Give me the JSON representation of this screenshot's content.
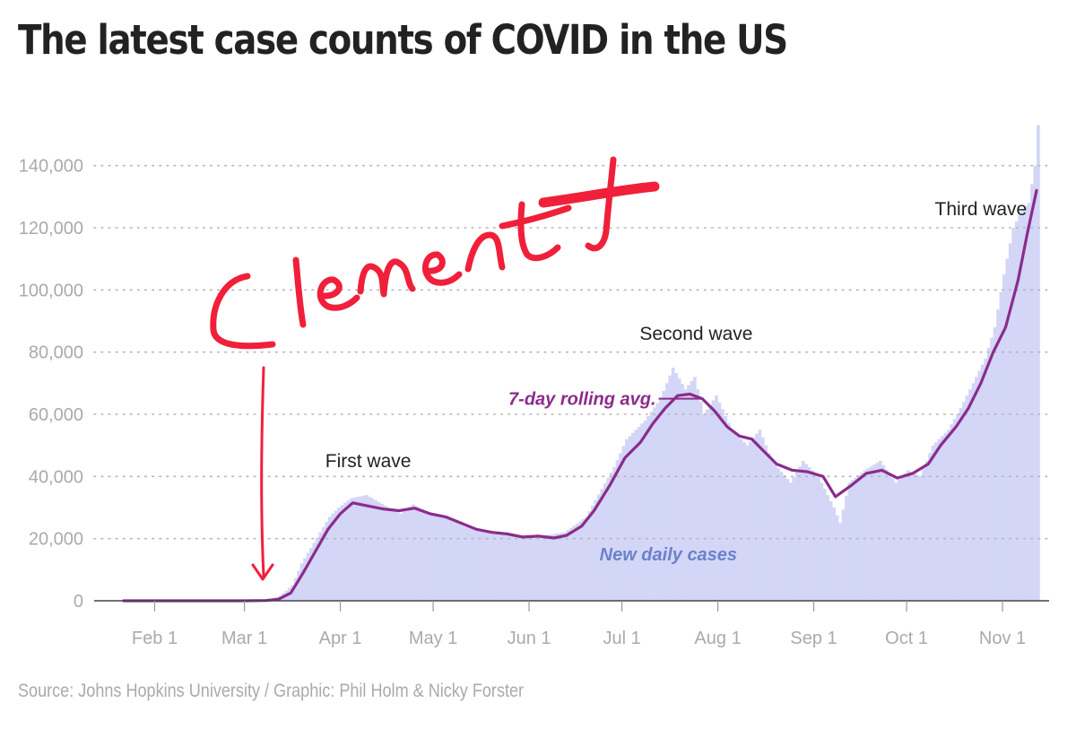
{
  "title": "The latest case counts of COVID in the US",
  "source": "Source: Johns Hopkins University / Graphic: Phil Holm & Nicky Forster",
  "handwriting": {
    "text": "Clement",
    "color": "#f0203a"
  },
  "colors": {
    "bars": "#d3d6f6",
    "line": "#8a2c8c",
    "grid": "#b5b5b5",
    "ticks": "#aaaaaa",
    "daily_label": "#6b82c9"
  },
  "chart_data": {
    "type": "bar",
    "title": "The latest case counts of COVID in the US",
    "xlabel": "",
    "ylabel": "",
    "grid": true,
    "x_range": [
      "2020-01-22",
      "2020-11-12"
    ],
    "ylim": [
      0,
      150000
    ],
    "y_ticks": [
      0,
      20000,
      40000,
      60000,
      80000,
      100000,
      120000,
      140000
    ],
    "y_tick_labels": [
      "0",
      "20,000",
      "40,000",
      "60,000",
      "80,000",
      "100,000",
      "120,000",
      "140,000"
    ],
    "x_ticks": [
      "2020-02-01",
      "2020-03-01",
      "2020-04-01",
      "2020-05-01",
      "2020-06-01",
      "2020-07-01",
      "2020-08-01",
      "2020-09-01",
      "2020-10-01",
      "2020-11-01"
    ],
    "x_tick_labels": [
      "Feb 1",
      "Mar 1",
      "Apr 1",
      "May 1",
      "Jun 1",
      "Jul 1",
      "Aug 1",
      "Sep 1",
      "Oct 1",
      "Nov 1"
    ],
    "series": [
      {
        "name": "New daily cases",
        "type": "bar",
        "points": [
          [
            "2020-01-22",
            0
          ],
          [
            "2020-03-01",
            30
          ],
          [
            "2020-03-08",
            400
          ],
          [
            "2020-03-12",
            1500
          ],
          [
            "2020-03-16",
            5000
          ],
          [
            "2020-03-19",
            12000
          ],
          [
            "2020-03-22",
            17000
          ],
          [
            "2020-03-25",
            22000
          ],
          [
            "2020-03-28",
            27000
          ],
          [
            "2020-03-31",
            30000
          ],
          [
            "2020-04-04",
            33000
          ],
          [
            "2020-04-09",
            34000
          ],
          [
            "2020-04-16",
            30000
          ],
          [
            "2020-04-20",
            28000
          ],
          [
            "2020-04-24",
            31000
          ],
          [
            "2020-04-30",
            28000
          ],
          [
            "2020-05-07",
            26000
          ],
          [
            "2020-05-15",
            23000
          ],
          [
            "2020-05-22",
            22000
          ],
          [
            "2020-05-29",
            21000
          ],
          [
            "2020-06-05",
            21000
          ],
          [
            "2020-06-12",
            22000
          ],
          [
            "2020-06-19",
            27000
          ],
          [
            "2020-06-24",
            36000
          ],
          [
            "2020-06-28",
            43000
          ],
          [
            "2020-07-02",
            52000
          ],
          [
            "2020-07-08",
            58000
          ],
          [
            "2020-07-13",
            65000
          ],
          [
            "2020-07-17",
            75000
          ],
          [
            "2020-07-21",
            68000
          ],
          [
            "2020-07-24",
            72000
          ],
          [
            "2020-07-27",
            60000
          ],
          [
            "2020-07-31",
            66000
          ],
          [
            "2020-08-05",
            55000
          ],
          [
            "2020-08-10",
            50000
          ],
          [
            "2020-08-14",
            55000
          ],
          [
            "2020-08-18",
            45000
          ],
          [
            "2020-08-24",
            38000
          ],
          [
            "2020-08-28",
            45000
          ],
          [
            "2020-09-02",
            40000
          ],
          [
            "2020-09-07",
            30000
          ],
          [
            "2020-09-09",
            25000
          ],
          [
            "2020-09-12",
            38000
          ],
          [
            "2020-09-17",
            42000
          ],
          [
            "2020-09-22",
            45000
          ],
          [
            "2020-09-27",
            38000
          ],
          [
            "2020-10-01",
            42000
          ],
          [
            "2020-10-05",
            40000
          ],
          [
            "2020-10-09",
            50000
          ],
          [
            "2020-10-14",
            55000
          ],
          [
            "2020-10-18",
            62000
          ],
          [
            "2020-10-22",
            70000
          ],
          [
            "2020-10-26",
            78000
          ],
          [
            "2020-10-29",
            88000
          ],
          [
            "2020-11-01",
            105000
          ],
          [
            "2020-11-04",
            120000
          ],
          [
            "2020-11-07",
            126000
          ],
          [
            "2020-11-09",
            128000
          ],
          [
            "2020-11-11",
            140000
          ],
          [
            "2020-11-12",
            153000
          ]
        ]
      },
      {
        "name": "7-day rolling avg.",
        "type": "line",
        "points": [
          [
            "2020-01-22",
            0
          ],
          [
            "2020-03-01",
            0
          ],
          [
            "2020-03-08",
            100
          ],
          [
            "2020-03-12",
            500
          ],
          [
            "2020-03-16",
            2500
          ],
          [
            "2020-03-20",
            9000
          ],
          [
            "2020-03-24",
            16000
          ],
          [
            "2020-03-28",
            23000
          ],
          [
            "2020-04-01",
            28000
          ],
          [
            "2020-04-05",
            31500
          ],
          [
            "2020-04-10",
            30500
          ],
          [
            "2020-04-15",
            29500
          ],
          [
            "2020-04-20",
            29000
          ],
          [
            "2020-04-25",
            29800
          ],
          [
            "2020-04-30",
            28000
          ],
          [
            "2020-05-05",
            27000
          ],
          [
            "2020-05-10",
            25000
          ],
          [
            "2020-05-15",
            23000
          ],
          [
            "2020-05-20",
            22000
          ],
          [
            "2020-05-25",
            21500
          ],
          [
            "2020-05-30",
            20500
          ],
          [
            "2020-06-04",
            20800
          ],
          [
            "2020-06-09",
            20200
          ],
          [
            "2020-06-13",
            21000
          ],
          [
            "2020-06-18",
            24000
          ],
          [
            "2020-06-22",
            29000
          ],
          [
            "2020-06-27",
            37000
          ],
          [
            "2020-07-02",
            46000
          ],
          [
            "2020-07-07",
            51000
          ],
          [
            "2020-07-11",
            57000
          ],
          [
            "2020-07-15",
            62000
          ],
          [
            "2020-07-19",
            66000
          ],
          [
            "2020-07-23",
            66500
          ],
          [
            "2020-07-27",
            65000
          ],
          [
            "2020-07-31",
            61000
          ],
          [
            "2020-08-04",
            56000
          ],
          [
            "2020-08-08",
            53000
          ],
          [
            "2020-08-12",
            52000
          ],
          [
            "2020-08-16",
            48000
          ],
          [
            "2020-08-20",
            44000
          ],
          [
            "2020-08-25",
            42000
          ],
          [
            "2020-08-30",
            41500
          ],
          [
            "2020-09-04",
            40000
          ],
          [
            "2020-09-08",
            33500
          ],
          [
            "2020-09-13",
            37000
          ],
          [
            "2020-09-18",
            41000
          ],
          [
            "2020-09-23",
            42000
          ],
          [
            "2020-09-28",
            39500
          ],
          [
            "2020-10-03",
            41000
          ],
          [
            "2020-10-08",
            44000
          ],
          [
            "2020-10-12",
            50000
          ],
          [
            "2020-10-17",
            56000
          ],
          [
            "2020-10-21",
            62000
          ],
          [
            "2020-10-25",
            70000
          ],
          [
            "2020-10-29",
            80000
          ],
          [
            "2020-11-02",
            88000
          ],
          [
            "2020-11-06",
            103000
          ],
          [
            "2020-11-09",
            118000
          ],
          [
            "2020-11-12",
            132000
          ]
        ]
      }
    ],
    "annotations": [
      {
        "text": "First wave",
        "x": "2020-04-10",
        "y": 43000
      },
      {
        "text": "Second wave",
        "x": "2020-07-25",
        "y": 84000
      },
      {
        "text": "Third wave",
        "x": "2020-10-25",
        "y": 124000
      },
      {
        "text": "7-day rolling avg.",
        "x": "2020-07-12",
        "y": 63000
      },
      {
        "text": "New daily cases",
        "x": "2020-07-16",
        "y": 13000
      }
    ]
  }
}
